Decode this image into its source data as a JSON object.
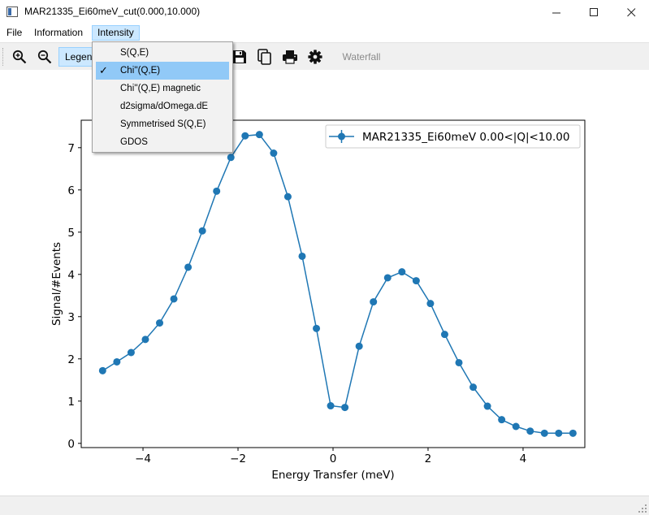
{
  "window": {
    "title": "MAR21335_Ei60meV_cut(0.000,10.000)",
    "controls": {
      "minimize": "—",
      "maximize": "☐",
      "close": "✕"
    }
  },
  "menubar": {
    "items": [
      {
        "label": "File"
      },
      {
        "label": "Information"
      },
      {
        "label": "Intensity"
      }
    ]
  },
  "toolbar": {
    "zoom_in_icon": "zoom-in-icon",
    "zoom_out_icon": "zoom-out-icon",
    "legend_label": "Legend",
    "save_icon": "save-icon",
    "copy_icon": "copy-icon",
    "print_icon": "print-icon",
    "settings_icon": "gear-icon",
    "waterfall_label": "Waterfall"
  },
  "intensity_menu": {
    "items": [
      {
        "label": "S(Q,E)",
        "checked": false
      },
      {
        "label": "Chi''(Q,E)",
        "checked": true
      },
      {
        "label": "Chi''(Q,E) magnetic",
        "checked": false
      },
      {
        "label": "d2sigma/dOmega.dE",
        "checked": false
      },
      {
        "label": "Symmetrised S(Q,E)",
        "checked": false
      },
      {
        "label": "GDOS",
        "checked": false
      }
    ],
    "check_glyph": "✓"
  },
  "colors": {
    "series": "#1f77b4",
    "menu_highlight": "#cce8ff",
    "dropdown_selected": "#91c9f7"
  },
  "chart_data": {
    "type": "line",
    "title": "",
    "xlabel": "Energy Transfer (meV)",
    "ylabel": "Signal/#Events",
    "xlim": [
      -5.3,
      5.3
    ],
    "ylim": [
      -0.1,
      7.65
    ],
    "xticks": [
      -4,
      -2,
      0,
      2,
      4
    ],
    "xtick_labels": [
      "−4",
      "−2",
      "0",
      "2",
      "4"
    ],
    "yticks": [
      0,
      1,
      2,
      3,
      4,
      5,
      6,
      7
    ],
    "ytick_labels": [
      "0",
      "1",
      "2",
      "3",
      "4",
      "5",
      "6",
      "7"
    ],
    "grid": false,
    "legend_position": "upper right",
    "series": [
      {
        "name": "MAR21335_Ei60meV 0.00<|Q|<10.00",
        "marker": "circle",
        "error_bars": true,
        "x": [
          -4.85,
          -4.55,
          -4.25,
          -3.95,
          -3.65,
          -3.35,
          -3.05,
          -2.75,
          -2.45,
          -2.15,
          -1.85,
          -1.55,
          -1.25,
          -0.95,
          -0.65,
          -0.35,
          -0.05,
          0.25,
          0.55,
          0.85,
          1.15,
          1.45,
          1.75,
          2.05,
          2.35,
          2.65,
          2.95,
          3.25,
          3.55,
          3.85,
          4.15,
          4.45,
          4.75,
          5.05
        ],
        "y": [
          1.72,
          1.93,
          2.15,
          2.46,
          2.85,
          3.42,
          4.17,
          5.03,
          5.97,
          6.77,
          7.28,
          7.31,
          6.87,
          5.84,
          4.43,
          2.72,
          0.89,
          0.85,
          2.3,
          3.35,
          3.92,
          4.06,
          3.85,
          3.31,
          2.58,
          1.91,
          1.33,
          0.88,
          0.56,
          0.4,
          0.29,
          0.24,
          0.24,
          0.24
        ]
      }
    ]
  }
}
